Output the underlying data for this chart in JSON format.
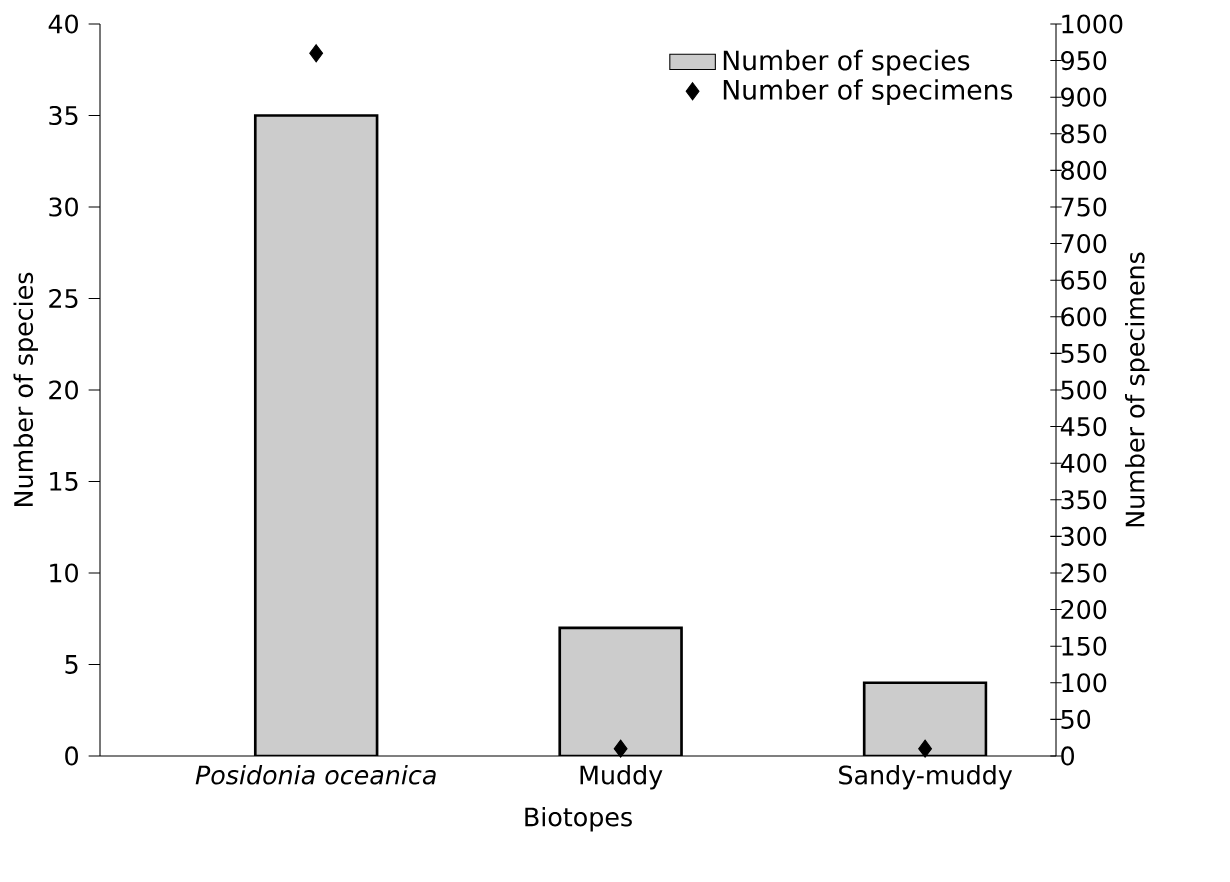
{
  "chart_data": {
    "type": "bar",
    "xlabel": "Biotopes",
    "ylabel": "Number of species",
    "y2label": "Number of specimens",
    "categories": [
      "Posidonia oceanica",
      "Muddy",
      "Sandy-muddy"
    ],
    "series": [
      {
        "name": "Number of species",
        "color": "#cccccc",
        "values": [
          35,
          7,
          4
        ]
      },
      {
        "name": "Number of specimens",
        "type": "scatter",
        "axis": "y2",
        "color": "#000000",
        "values": [
          960,
          10,
          10
        ]
      }
    ],
    "ylim": [
      0,
      40
    ],
    "yticks": [
      0,
      5,
      10,
      15,
      20,
      25,
      30,
      35,
      40
    ],
    "y2lim": [
      0,
      1000
    ],
    "y2ticks": [
      0,
      50,
      100,
      150,
      200,
      250,
      300,
      350,
      400,
      450,
      500,
      550,
      600,
      650,
      700,
      750,
      800,
      850,
      900,
      950,
      1000
    ],
    "legend": "top right",
    "marker": "diamond"
  }
}
